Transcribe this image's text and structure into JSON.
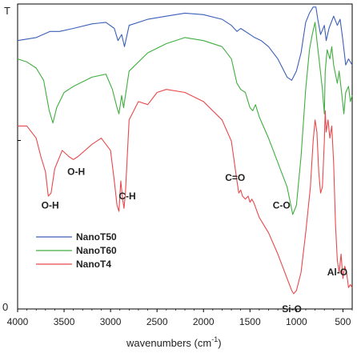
{
  "chart_data": {
    "type": "line",
    "xlabel": "wavenumbers (cm",
    "xlabel_sup": "-1",
    "xlabel_close": ")",
    "ylabel_top": "T",
    "ylabel_bottom": "0",
    "xlim": [
      4000,
      400
    ],
    "ylim": [
      0,
      100
    ],
    "x_ticks": [
      4000,
      3500,
      3000,
      2500,
      2000,
      1500,
      1000,
      500
    ],
    "grid": false,
    "legend_position": "bottom-left",
    "series": [
      {
        "name": "NanoT50",
        "color": "#3a5fb8",
        "points": [
          [
            4000,
            88
          ],
          [
            3800,
            89
          ],
          [
            3650,
            91
          ],
          [
            3550,
            91
          ],
          [
            3400,
            92
          ],
          [
            3200,
            93.5
          ],
          [
            3050,
            94
          ],
          [
            2960,
            92
          ],
          [
            2920,
            88
          ],
          [
            2880,
            90
          ],
          [
            2850,
            86
          ],
          [
            2800,
            93
          ],
          [
            2600,
            95
          ],
          [
            2400,
            96
          ],
          [
            2200,
            97
          ],
          [
            2000,
            96.5
          ],
          [
            1800,
            95
          ],
          [
            1700,
            93
          ],
          [
            1640,
            91
          ],
          [
            1600,
            92
          ],
          [
            1500,
            90
          ],
          [
            1450,
            89
          ],
          [
            1380,
            88
          ],
          [
            1300,
            86
          ],
          [
            1200,
            82
          ],
          [
            1100,
            76
          ],
          [
            1050,
            75
          ],
          [
            1000,
            78
          ],
          [
            950,
            84
          ],
          [
            900,
            94
          ],
          [
            860,
            97
          ],
          [
            820,
            99
          ],
          [
            790,
            99
          ],
          [
            770,
            95
          ],
          [
            740,
            90
          ],
          [
            700,
            93
          ],
          [
            680,
            88
          ],
          [
            650,
            92
          ],
          [
            600,
            96
          ],
          [
            560,
            93
          ],
          [
            530,
            95
          ],
          [
            500,
            88
          ],
          [
            470,
            80
          ],
          [
            440,
            82
          ],
          [
            400,
            80
          ]
        ]
      },
      {
        "name": "NanoT60",
        "color": "#3fae3f",
        "points": [
          [
            4000,
            82
          ],
          [
            3900,
            81
          ],
          [
            3800,
            79
          ],
          [
            3720,
            75
          ],
          [
            3660,
            65
          ],
          [
            3620,
            61
          ],
          [
            3580,
            66
          ],
          [
            3500,
            71
          ],
          [
            3400,
            73
          ],
          [
            3200,
            76
          ],
          [
            3050,
            77
          ],
          [
            2980,
            72
          ],
          [
            2930,
            66
          ],
          [
            2910,
            64
          ],
          [
            2880,
            70
          ],
          [
            2860,
            66
          ],
          [
            2840,
            70
          ],
          [
            2800,
            78
          ],
          [
            2600,
            84
          ],
          [
            2400,
            87
          ],
          [
            2200,
            89
          ],
          [
            2000,
            88
          ],
          [
            1800,
            86
          ],
          [
            1700,
            82
          ],
          [
            1640,
            74
          ],
          [
            1600,
            72
          ],
          [
            1550,
            71
          ],
          [
            1500,
            66
          ],
          [
            1470,
            65
          ],
          [
            1440,
            67
          ],
          [
            1400,
            63
          ],
          [
            1300,
            56
          ],
          [
            1200,
            48
          ],
          [
            1150,
            44
          ],
          [
            1100,
            40
          ],
          [
            1060,
            34
          ],
          [
            1040,
            31
          ],
          [
            1000,
            34
          ],
          [
            950,
            50
          ],
          [
            900,
            72
          ],
          [
            860,
            85
          ],
          [
            830,
            90
          ],
          [
            800,
            94
          ],
          [
            780,
            88
          ],
          [
            750,
            80
          ],
          [
            720,
            72
          ],
          [
            700,
            64
          ],
          [
            690,
            78
          ],
          [
            670,
            85
          ],
          [
            640,
            82
          ],
          [
            620,
            86
          ],
          [
            600,
            80
          ],
          [
            560,
            74
          ],
          [
            540,
            78
          ],
          [
            510,
            70
          ],
          [
            490,
            64
          ],
          [
            470,
            71
          ],
          [
            440,
            73
          ],
          [
            420,
            68
          ],
          [
            400,
            70
          ]
        ]
      },
      {
        "name": "NanoT4",
        "color": "#e8484b",
        "points": [
          [
            4000,
            60
          ],
          [
            3900,
            60
          ],
          [
            3800,
            56
          ],
          [
            3750,
            50
          ],
          [
            3700,
            45
          ],
          [
            3670,
            37
          ],
          [
            3640,
            38
          ],
          [
            3600,
            46
          ],
          [
            3520,
            52
          ],
          [
            3450,
            50
          ],
          [
            3400,
            49
          ],
          [
            3350,
            50
          ],
          [
            3200,
            54
          ],
          [
            3100,
            56
          ],
          [
            3000,
            52
          ],
          [
            2960,
            42
          ],
          [
            2930,
            34
          ],
          [
            2910,
            32
          ],
          [
            2890,
            42
          ],
          [
            2870,
            36
          ],
          [
            2855,
            33
          ],
          [
            2840,
            38
          ],
          [
            2800,
            62
          ],
          [
            2700,
            68
          ],
          [
            2600,
            67
          ],
          [
            2500,
            71
          ],
          [
            2400,
            72
          ],
          [
            2200,
            71
          ],
          [
            2000,
            68
          ],
          [
            1800,
            62
          ],
          [
            1700,
            55
          ],
          [
            1640,
            42
          ],
          [
            1620,
            38
          ],
          [
            1600,
            39
          ],
          [
            1580,
            37
          ],
          [
            1550,
            36
          ],
          [
            1520,
            37
          ],
          [
            1500,
            35
          ],
          [
            1480,
            36
          ],
          [
            1460,
            35
          ],
          [
            1400,
            30
          ],
          [
            1300,
            25
          ],
          [
            1200,
            18
          ],
          [
            1100,
            10
          ],
          [
            1050,
            6
          ],
          [
            1030,
            5
          ],
          [
            1000,
            6
          ],
          [
            950,
            12
          ],
          [
            900,
            25
          ],
          [
            850,
            40
          ],
          [
            820,
            55
          ],
          [
            800,
            62
          ],
          [
            780,
            58
          ],
          [
            760,
            45
          ],
          [
            740,
            38
          ],
          [
            720,
            40
          ],
          [
            700,
            55
          ],
          [
            690,
            65
          ],
          [
            680,
            58
          ],
          [
            660,
            62
          ],
          [
            640,
            56
          ],
          [
            620,
            60
          ],
          [
            600,
            48
          ],
          [
            580,
            28
          ],
          [
            560,
            16
          ],
          [
            540,
            12
          ],
          [
            520,
            18
          ],
          [
            500,
            10
          ],
          [
            480,
            14
          ],
          [
            460,
            12
          ],
          [
            440,
            7
          ],
          [
            420,
            8
          ],
          [
            400,
            7
          ]
        ]
      }
    ],
    "annotations": [
      {
        "text": "O-H",
        "x": 3650,
        "y": 33
      },
      {
        "text": "O-H",
        "x": 3370,
        "y": 44
      },
      {
        "text": "C-H",
        "x": 2820,
        "y": 36
      },
      {
        "text": "C=O",
        "x": 1660,
        "y": 42
      },
      {
        "text": "C-O",
        "x": 1160,
        "y": 33
      },
      {
        "text": "Si-O",
        "x": 1050,
        "y": -1
      },
      {
        "text": "Al-O",
        "x": 560,
        "y": 11
      }
    ]
  }
}
